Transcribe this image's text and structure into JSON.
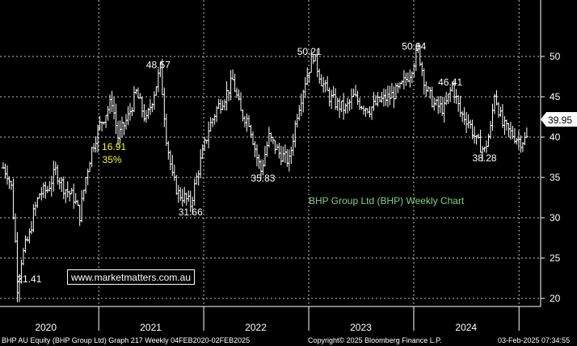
{
  "chart_data": {
    "type": "ohlc",
    "title": "BHP Group Ltd (BHP) Weekly Chart",
    "xlabel": "",
    "ylabel": "",
    "x_range": [
      "2020-02-04",
      "2025-02-03"
    ],
    "ylim": [
      18,
      55
    ],
    "y_ticks": [
      20,
      25,
      30,
      35,
      40,
      45,
      50
    ],
    "x_tick_labels": [
      "2020",
      "2021",
      "2022",
      "2023",
      "2024"
    ],
    "grid": true,
    "last_price": "39.95",
    "series": [
      {
        "points": [
          {
            "x": "2020-02-04",
            "y": 36.2
          },
          {
            "x": "2020-02-18",
            "y": 35.5
          },
          {
            "x": "2020-03-03",
            "y": 33.8
          },
          {
            "x": "2020-03-17",
            "y": 27.0
          },
          {
            "x": "2020-03-24",
            "y": 21.41
          },
          {
            "x": "2020-04-07",
            "y": 24.8
          },
          {
            "x": "2020-04-21",
            "y": 26.5
          },
          {
            "x": "2020-05-05",
            "y": 27.8
          },
          {
            "x": "2020-05-19",
            "y": 30.5
          },
          {
            "x": "2020-06-09",
            "y": 33.0
          },
          {
            "x": "2020-07-07",
            "y": 33.5
          },
          {
            "x": "2020-08-04",
            "y": 35.8
          },
          {
            "x": "2020-09-01",
            "y": 33.8
          },
          {
            "x": "2020-10-06",
            "y": 32.5
          },
          {
            "x": "2020-10-27",
            "y": 30.3
          },
          {
            "x": "2020-11-17",
            "y": 35.0
          },
          {
            "x": "2020-12-08",
            "y": 38.5
          },
          {
            "x": "2021-01-05",
            "y": 41.5
          },
          {
            "x": "2021-02-16",
            "y": 44.5
          },
          {
            "x": "2021-03-09",
            "y": 40.0
          },
          {
            "x": "2021-04-13",
            "y": 42.5
          },
          {
            "x": "2021-05-11",
            "y": 45.5
          },
          {
            "x": "2021-06-15",
            "y": 42.0
          },
          {
            "x": "2021-07-20",
            "y": 46.5
          },
          {
            "x": "2021-08-03",
            "y": 48.57
          },
          {
            "x": "2021-08-24",
            "y": 40.0
          },
          {
            "x": "2021-09-14",
            "y": 35.0
          },
          {
            "x": "2021-10-05",
            "y": 33.0
          },
          {
            "x": "2021-10-26",
            "y": 32.5
          },
          {
            "x": "2021-11-16",
            "y": 31.66
          },
          {
            "x": "2021-12-14",
            "y": 36.0
          },
          {
            "x": "2022-01-18",
            "y": 41.0
          },
          {
            "x": "2022-02-15",
            "y": 43.5
          },
          {
            "x": "2022-03-15",
            "y": 45.0
          },
          {
            "x": "2022-04-12",
            "y": 47.0
          },
          {
            "x": "2022-05-10",
            "y": 43.0
          },
          {
            "x": "2022-06-07",
            "y": 42.0
          },
          {
            "x": "2022-07-05",
            "y": 37.5
          },
          {
            "x": "2022-07-19",
            "y": 35.83
          },
          {
            "x": "2022-08-16",
            "y": 40.0
          },
          {
            "x": "2022-09-20",
            "y": 38.0
          },
          {
            "x": "2022-10-25",
            "y": 37.0
          },
          {
            "x": "2022-11-22",
            "y": 43.0
          },
          {
            "x": "2022-12-20",
            "y": 47.0
          },
          {
            "x": "2023-01-17",
            "y": 50.21
          },
          {
            "x": "2023-02-14",
            "y": 47.0
          },
          {
            "x": "2023-03-14",
            "y": 45.0
          },
          {
            "x": "2023-04-11",
            "y": 44.0
          },
          {
            "x": "2023-05-09",
            "y": 43.5
          },
          {
            "x": "2023-06-06",
            "y": 45.0
          },
          {
            "x": "2023-07-04",
            "y": 44.0
          },
          {
            "x": "2023-08-01",
            "y": 43.5
          },
          {
            "x": "2023-09-05",
            "y": 44.5
          },
          {
            "x": "2023-10-10",
            "y": 45.0
          },
          {
            "x": "2023-11-14",
            "y": 46.0
          },
          {
            "x": "2023-12-19",
            "y": 48.0
          },
          {
            "x": "2024-01-16",
            "y": 50.84
          },
          {
            "x": "2024-02-13",
            "y": 46.0
          },
          {
            "x": "2024-03-12",
            "y": 44.0
          },
          {
            "x": "2024-04-16",
            "y": 43.5
          },
          {
            "x": "2024-05-14",
            "y": 46.41
          },
          {
            "x": "2024-06-11",
            "y": 43.0
          },
          {
            "x": "2024-07-09",
            "y": 42.0
          },
          {
            "x": "2024-08-06",
            "y": 39.5
          },
          {
            "x": "2024-09-03",
            "y": 38.28
          },
          {
            "x": "2024-09-24",
            "y": 41.0
          },
          {
            "x": "2024-10-08",
            "y": 45.5
          },
          {
            "x": "2024-11-05",
            "y": 41.5
          },
          {
            "x": "2024-12-03",
            "y": 40.5
          },
          {
            "x": "2025-01-07",
            "y": 39.5
          },
          {
            "x": "2025-02-03",
            "y": 39.95
          }
        ]
      }
    ],
    "annotations": [
      {
        "text": "48.57",
        "x": "2021-07-27",
        "y": 48.57,
        "color": "#ffffff"
      },
      {
        "text": "50.21",
        "x": "2023-01-03",
        "y": 50.21,
        "color": "#ffffff"
      },
      {
        "text": "50.84",
        "x": "2024-01-02",
        "y": 50.84,
        "color": "#ffffff"
      },
      {
        "text": "46.41",
        "x": "2024-05-07",
        "y": 46.41,
        "color": "#ffffff"
      },
      {
        "text": "16.91",
        "x": "2021-02-23",
        "y": 38.4,
        "color": "#ffff00"
      },
      {
        "text": "35%",
        "x": "2021-02-16",
        "y": 36.8,
        "color": "#ffff00"
      },
      {
        "text": "35.83",
        "x": "2022-07-26",
        "y": 34.5,
        "color": "#ffffff"
      },
      {
        "text": "38.28",
        "x": "2024-09-03",
        "y": 37.0,
        "color": "#ffffff"
      },
      {
        "text": "31.66",
        "x": "2021-11-16",
        "y": 30.3,
        "color": "#ffffff"
      },
      {
        "text": "21.41",
        "x": "2020-05-05",
        "y": 22.0,
        "color": "#ffffff"
      }
    ],
    "chart_title_color": "#7fd37f",
    "background": "#000000",
    "bar_color": "#ffffff"
  },
  "watermark": "www.marketmatters.com.au",
  "footer": {
    "left": "BHP AU Equity (BHP Group Ltd) Graph 217  Weekly 04FEB2020-02FEB2025",
    "center": "Copyright© 2025 Bloomberg Finance L.P.",
    "right": "03-Feb-2025 07:34:55"
  }
}
